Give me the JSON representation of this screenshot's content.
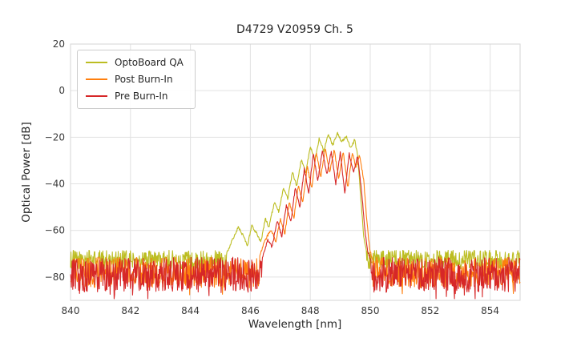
{
  "chart_data": {
    "type": "line",
    "title": "D4729 V20959 Ch. 5",
    "xlabel": "Wavelength [nm]",
    "ylabel": "Optical Power [dB]",
    "xlim": [
      840,
      855
    ],
    "ylim": [
      -90,
      20
    ],
    "xticks": [
      840,
      842,
      844,
      846,
      848,
      850,
      852,
      854
    ],
    "yticks": [
      20,
      0,
      -20,
      -40,
      -60,
      -80
    ],
    "grid": true,
    "grid_color": "#e2e2e2",
    "frame_color": "#d5d5d5",
    "legend_position": "upper left",
    "series": [
      {
        "name": "OptoBoard QA",
        "color": "#bcbd22",
        "noise_floor": {
          "mean": -72.5,
          "amplitude": 4.0,
          "spike_prob": 0.06,
          "spike_extra": 5
        },
        "envelope": [
          [
            845.2,
            -70
          ],
          [
            845.4,
            -64
          ],
          [
            845.6,
            -58.5
          ],
          [
            845.75,
            -62
          ],
          [
            845.9,
            -66.5
          ],
          [
            846.05,
            -58
          ],
          [
            846.2,
            -61
          ],
          [
            846.35,
            -65
          ],
          [
            846.5,
            -55
          ],
          [
            846.62,
            -58.5
          ],
          [
            846.8,
            -48
          ],
          [
            846.95,
            -52
          ],
          [
            847.1,
            -41.5
          ],
          [
            847.25,
            -46.5
          ],
          [
            847.4,
            -35
          ],
          [
            847.55,
            -41
          ],
          [
            847.7,
            -29.5
          ],
          [
            847.85,
            -35.5
          ],
          [
            848.0,
            -24
          ],
          [
            848.15,
            -30
          ],
          [
            848.3,
            -20.5
          ],
          [
            848.45,
            -26
          ],
          [
            848.6,
            -18.5
          ],
          [
            848.75,
            -23.5
          ],
          [
            848.9,
            -18
          ],
          [
            849.05,
            -22
          ],
          [
            849.2,
            -19.5
          ],
          [
            849.35,
            -25
          ],
          [
            849.48,
            -21
          ],
          [
            849.58,
            -28
          ],
          [
            849.68,
            -45
          ],
          [
            849.78,
            -62
          ],
          [
            849.88,
            -70
          ]
        ]
      },
      {
        "name": "Post Burn-In",
        "color": "#ff7f0e",
        "noise_floor": {
          "mean": -78,
          "amplitude": 6.5,
          "spike_prob": 0.08,
          "spike_extra": 5
        },
        "envelope": [
          [
            846.3,
            -71
          ],
          [
            846.5,
            -64
          ],
          [
            846.7,
            -59.5
          ],
          [
            846.85,
            -65
          ],
          [
            847.0,
            -55
          ],
          [
            847.15,
            -61.5
          ],
          [
            847.3,
            -48
          ],
          [
            847.45,
            -55
          ],
          [
            847.6,
            -40.5
          ],
          [
            847.75,
            -48
          ],
          [
            847.9,
            -32.5
          ],
          [
            848.05,
            -42
          ],
          [
            848.2,
            -26.5
          ],
          [
            848.35,
            -37
          ],
          [
            848.5,
            -25
          ],
          [
            848.65,
            -35
          ],
          [
            848.8,
            -25.5
          ],
          [
            848.95,
            -38
          ],
          [
            849.1,
            -26
          ],
          [
            849.25,
            -42
          ],
          [
            849.4,
            -26.5
          ],
          [
            849.52,
            -33
          ],
          [
            849.64,
            -27.5
          ],
          [
            849.78,
            -38
          ],
          [
            849.88,
            -55
          ],
          [
            849.98,
            -68
          ],
          [
            850.08,
            -73
          ]
        ]
      },
      {
        "name": "Pre Burn-In",
        "color": "#d62728",
        "noise_floor": {
          "mean": -79,
          "amplitude": 7.5,
          "spike_prob": 0.08,
          "spike_extra": 6
        },
        "envelope": [
          [
            846.4,
            -72
          ],
          [
            846.58,
            -64
          ],
          [
            846.72,
            -67
          ],
          [
            846.9,
            -56
          ],
          [
            847.05,
            -62.5
          ],
          [
            847.2,
            -49
          ],
          [
            847.35,
            -56.5
          ],
          [
            847.5,
            -41.5
          ],
          [
            847.65,
            -50
          ],
          [
            847.8,
            -33.5
          ],
          [
            847.95,
            -44
          ],
          [
            848.1,
            -27
          ],
          [
            848.25,
            -39
          ],
          [
            848.4,
            -25.5
          ],
          [
            848.55,
            -36
          ],
          [
            848.7,
            -26
          ],
          [
            848.85,
            -40
          ],
          [
            849.0,
            -26.5
          ],
          [
            849.15,
            -44
          ],
          [
            849.3,
            -27
          ],
          [
            849.44,
            -35
          ],
          [
            849.58,
            -28
          ],
          [
            849.72,
            -44
          ],
          [
            849.82,
            -60
          ],
          [
            849.92,
            -69
          ],
          [
            850.02,
            -73
          ]
        ]
      }
    ]
  }
}
